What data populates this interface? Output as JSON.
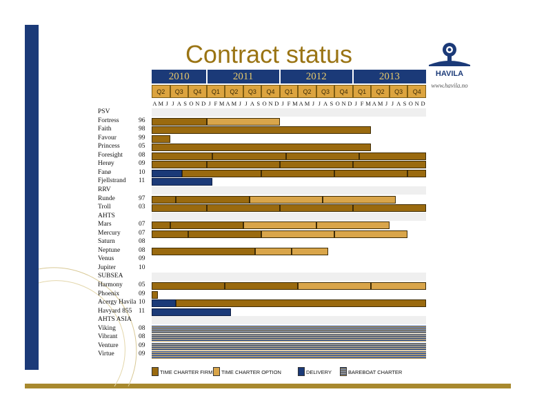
{
  "title": "Contract status",
  "logo": {
    "name": "HAVILA",
    "url": "www.havila.no"
  },
  "colors": {
    "firm": "#9a6a0f",
    "option": "#d9a54a",
    "delivery": "#1b3a78",
    "bareboat": "stripe",
    "header_blue": "#1b3a78",
    "gold": "#a8892e"
  },
  "chart_data": {
    "type": "gantt",
    "title": "Contract status",
    "years": [
      "2010",
      "2011",
      "2012",
      "2013"
    ],
    "quarters": [
      "Q2",
      "Q3",
      "Q4",
      "Q1",
      "Q2",
      "Q3",
      "Q4",
      "Q1",
      "Q2",
      "Q3",
      "Q4",
      "Q1",
      "Q2",
      "Q3",
      "Q4"
    ],
    "months": [
      "A",
      "M",
      "J",
      "J",
      "A",
      "S",
      "O",
      "N",
      "D",
      "J",
      "F",
      "M",
      "A",
      "M",
      "J",
      "J",
      "A",
      "S",
      "O",
      "N",
      "D",
      "J",
      "F",
      "M",
      "A",
      "M",
      "J",
      "J",
      "A",
      "S",
      "O",
      "N",
      "D",
      "J",
      "F",
      "M",
      "A",
      "M",
      "J",
      "J",
      "A",
      "S",
      "O",
      "N",
      "D"
    ],
    "time_range": [
      "2010-04",
      "2013-12"
    ],
    "legend": [
      {
        "key": "firm",
        "label": "TIME CHARTER FIRM"
      },
      {
        "key": "option",
        "label": "TIME CHARTER OPTION"
      },
      {
        "key": "delivery",
        "label": "DELIVERY"
      },
      {
        "key": "bareboat",
        "label": "BAREBOAT CHARTER"
      }
    ],
    "rows": [
      {
        "type": "section",
        "label": "PSV"
      },
      {
        "label": "Fortress",
        "year": "96",
        "segments": [
          {
            "k": "firm",
            "s": 0,
            "e": 9
          },
          {
            "k": "option",
            "s": 9,
            "e": 21
          }
        ]
      },
      {
        "label": "Faith",
        "year": "98",
        "segments": [
          {
            "k": "firm",
            "s": 0,
            "e": 36
          }
        ]
      },
      {
        "label": "Favour",
        "year": "99",
        "segments": [
          {
            "k": "firm",
            "s": 0,
            "e": 3
          }
        ]
      },
      {
        "label": "Princess",
        "year": "05",
        "segments": [
          {
            "k": "firm",
            "s": 0,
            "e": 36
          }
        ]
      },
      {
        "label": "Foresight",
        "year": "08",
        "segments": [
          {
            "k": "firm",
            "s": 0,
            "e": 10
          },
          {
            "k": "firm",
            "s": 10,
            "e": 22
          },
          {
            "k": "firm",
            "s": 22,
            "e": 34
          },
          {
            "k": "firm",
            "s": 34,
            "e": 45
          }
        ]
      },
      {
        "label": "Herøy",
        "year": "09",
        "segments": [
          {
            "k": "firm",
            "s": 0,
            "e": 9
          },
          {
            "k": "firm",
            "s": 9,
            "e": 21
          },
          {
            "k": "firm",
            "s": 21,
            "e": 33
          },
          {
            "k": "firm",
            "s": 33,
            "e": 45
          }
        ]
      },
      {
        "label": "Fanø",
        "year": "10",
        "segments": [
          {
            "k": "delivery",
            "s": 0,
            "e": 5
          },
          {
            "k": "firm",
            "s": 5,
            "e": 18
          },
          {
            "k": "firm",
            "s": 18,
            "e": 30
          },
          {
            "k": "firm",
            "s": 30,
            "e": 42
          },
          {
            "k": "firm",
            "s": 42,
            "e": 45
          }
        ]
      },
      {
        "label": "Fjellstrand",
        "year": "11",
        "segments": [
          {
            "k": "delivery",
            "s": 0,
            "e": 10
          }
        ]
      },
      {
        "type": "section",
        "label": "RRV"
      },
      {
        "label": "Runde",
        "year": "97",
        "segments": [
          {
            "k": "firm",
            "s": 0,
            "e": 4
          },
          {
            "k": "firm",
            "s": 4,
            "e": 16
          },
          {
            "k": "option",
            "s": 16,
            "e": 28
          },
          {
            "k": "option",
            "s": 28,
            "e": 40
          }
        ]
      },
      {
        "label": "Troll",
        "year": "03",
        "segments": [
          {
            "k": "firm",
            "s": 0,
            "e": 9
          },
          {
            "k": "firm",
            "s": 9,
            "e": 21
          },
          {
            "k": "firm",
            "s": 21,
            "e": 33
          },
          {
            "k": "firm",
            "s": 33,
            "e": 45
          }
        ]
      },
      {
        "type": "section",
        "label": "AHTS"
      },
      {
        "label": "Mars",
        "year": "07",
        "segments": [
          {
            "k": "firm",
            "s": 0,
            "e": 3
          },
          {
            "k": "firm",
            "s": 3,
            "e": 15
          },
          {
            "k": "option",
            "s": 15,
            "e": 27
          },
          {
            "k": "option",
            "s": 27,
            "e": 39
          }
        ]
      },
      {
        "label": "Mercury",
        "year": "07",
        "segments": [
          {
            "k": "firm",
            "s": 0,
            "e": 6
          },
          {
            "k": "firm",
            "s": 6,
            "e": 18
          },
          {
            "k": "option",
            "s": 18,
            "e": 30
          },
          {
            "k": "option",
            "s": 30,
            "e": 42
          }
        ]
      },
      {
        "label": "Saturn",
        "year": "08",
        "segments": []
      },
      {
        "label": "Neptune",
        "year": "08",
        "segments": [
          {
            "k": "firm",
            "s": 0,
            "e": 17
          },
          {
            "k": "option",
            "s": 17,
            "e": 23
          },
          {
            "k": "option",
            "s": 23,
            "e": 29
          }
        ]
      },
      {
        "label": "Venus",
        "year": "09",
        "segments": []
      },
      {
        "label": "Jupiter",
        "year": "10",
        "segments": []
      },
      {
        "type": "section",
        "label": "SUBSEA"
      },
      {
        "label": "Harmony",
        "year": "05",
        "segments": [
          {
            "k": "firm",
            "s": 0,
            "e": 12
          },
          {
            "k": "firm",
            "s": 12,
            "e": 24
          },
          {
            "k": "option",
            "s": 24,
            "e": 36
          },
          {
            "k": "option",
            "s": 36,
            "e": 45
          }
        ]
      },
      {
        "label": "Phoenix",
        "year": "09",
        "segments": [
          {
            "k": "firm",
            "s": 0,
            "e": 1
          }
        ]
      },
      {
        "label": "Acergy Havila",
        "year": "10",
        "segments": [
          {
            "k": "delivery",
            "s": 0,
            "e": 4
          },
          {
            "k": "firm",
            "s": 4,
            "e": 45
          }
        ]
      },
      {
        "label": "Havyard 855",
        "year": "11",
        "segments": [
          {
            "k": "delivery",
            "s": 0,
            "e": 13
          }
        ]
      },
      {
        "type": "section",
        "label": "AHTS ASIA"
      },
      {
        "label": "Viking",
        "year": "08",
        "segments": [
          {
            "k": "bareboat",
            "s": 0,
            "e": 45
          }
        ]
      },
      {
        "label": "Vibrant",
        "year": "08",
        "segments": [
          {
            "k": "bareboat",
            "s": 0,
            "e": 45
          }
        ]
      },
      {
        "label": "Venture",
        "year": "09",
        "segments": [
          {
            "k": "bareboat",
            "s": 0,
            "e": 45
          }
        ]
      },
      {
        "label": "Virtue",
        "year": "09",
        "segments": [
          {
            "k": "bareboat",
            "s": 0,
            "e": 45
          }
        ]
      }
    ]
  }
}
